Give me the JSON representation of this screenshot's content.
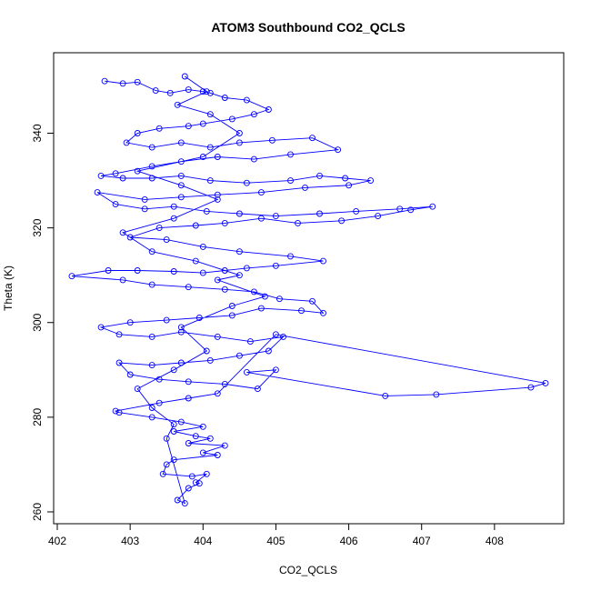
{
  "chart_data": {
    "type": "line",
    "title": "ATOM3 Southbound CO2_QCLS",
    "xlabel": "CO2_QCLS",
    "ylabel": "Theta (K)",
    "xlim": [
      401.95,
      408.95
    ],
    "ylim": [
      257.5,
      357.0
    ],
    "xticks": [
      402,
      403,
      404,
      405,
      406,
      407,
      408
    ],
    "yticks": [
      260,
      280,
      300,
      320,
      340
    ],
    "grid": false,
    "legend": "none",
    "marker": "open-circle",
    "color": "#0000ff",
    "series": [
      {
        "points": [
          [
            402.65,
            351
          ],
          [
            402.9,
            350.5
          ],
          [
            403.1,
            350.8
          ],
          [
            403.35,
            349
          ],
          [
            403.55,
            348.5
          ],
          [
            403.8,
            349.2
          ],
          [
            404.0,
            348.8
          ],
          [
            404.1,
            348.5
          ],
          [
            404.3,
            347.5
          ],
          [
            404.6,
            347
          ],
          [
            404.9,
            345
          ],
          [
            404.7,
            344
          ],
          [
            404.4,
            343
          ],
          [
            404.0,
            342
          ],
          [
            403.8,
            341.5
          ],
          [
            403.4,
            341
          ],
          [
            403.1,
            340
          ],
          [
            402.95,
            338
          ],
          [
            403.3,
            337
          ],
          [
            403.7,
            338
          ],
          [
            404.1,
            337
          ],
          [
            404.5,
            338
          ],
          [
            404.95,
            338.5
          ],
          [
            405.5,
            339
          ],
          [
            405.85,
            336.5
          ],
          [
            405.2,
            335.5
          ],
          [
            404.7,
            334.5
          ],
          [
            404.2,
            335
          ],
          [
            403.7,
            334
          ],
          [
            403.3,
            333
          ],
          [
            402.8,
            331.5
          ],
          [
            402.6,
            331
          ],
          [
            402.9,
            330.5
          ],
          [
            403.3,
            330.5
          ],
          [
            403.7,
            331
          ],
          [
            404.1,
            330
          ],
          [
            404.6,
            329.5
          ],
          [
            405.2,
            330
          ],
          [
            405.6,
            331
          ],
          [
            405.95,
            330.5
          ],
          [
            406.3,
            330
          ],
          [
            406.0,
            329
          ],
          [
            405.4,
            328.5
          ],
          [
            404.8,
            327.5
          ],
          [
            404.2,
            327
          ],
          [
            403.7,
            326.5
          ],
          [
            403.2,
            326
          ],
          [
            402.55,
            327.5
          ],
          [
            402.8,
            325
          ],
          [
            403.2,
            324
          ],
          [
            403.6,
            324.5
          ],
          [
            404.05,
            323.5
          ],
          [
            404.5,
            323
          ],
          [
            405.0,
            322.5
          ],
          [
            405.6,
            323
          ],
          [
            406.1,
            323.5
          ],
          [
            406.7,
            324
          ],
          [
            407.15,
            324.5
          ],
          [
            406.85,
            323.8
          ],
          [
            406.4,
            322.5
          ],
          [
            405.9,
            321.5
          ],
          [
            405.3,
            321
          ],
          [
            404.8,
            322
          ],
          [
            404.3,
            321
          ],
          [
            403.9,
            320.5
          ],
          [
            403.4,
            320
          ],
          [
            403.0,
            318
          ],
          [
            403.5,
            317.5
          ],
          [
            404.0,
            316
          ],
          [
            404.5,
            315
          ],
          [
            405.2,
            314
          ],
          [
            405.65,
            313
          ],
          [
            405.0,
            312
          ],
          [
            404.6,
            311.5
          ],
          [
            404.3,
            311
          ],
          [
            404.0,
            310.5
          ],
          [
            403.6,
            310.8
          ],
          [
            403.1,
            311
          ],
          [
            402.7,
            311
          ],
          [
            402.2,
            309.8
          ],
          [
            402.9,
            309
          ],
          [
            403.3,
            308
          ],
          [
            403.8,
            307.5
          ],
          [
            404.3,
            307
          ],
          [
            404.7,
            306.5
          ],
          [
            405.05,
            305
          ],
          [
            405.5,
            304.5
          ],
          [
            405.65,
            302
          ],
          [
            405.35,
            302.5
          ],
          [
            404.8,
            303
          ],
          [
            404.4,
            301.5
          ],
          [
            403.95,
            301
          ],
          [
            403.5,
            300.5
          ],
          [
            403.0,
            300
          ],
          [
            402.6,
            299
          ],
          [
            402.85,
            297.5
          ],
          [
            403.3,
            297
          ],
          [
            403.7,
            298
          ],
          [
            404.2,
            297
          ],
          [
            404.65,
            296
          ],
          [
            405.1,
            297
          ],
          [
            404.9,
            294
          ],
          [
            404.5,
            293
          ],
          [
            404.1,
            292
          ],
          [
            403.7,
            291.5
          ],
          [
            403.3,
            291
          ],
          [
            402.85,
            291.5
          ],
          [
            403.0,
            289
          ],
          [
            403.4,
            288
          ],
          [
            403.8,
            287.5
          ],
          [
            404.3,
            287
          ],
          [
            404.75,
            286
          ],
          [
            405.0,
            290
          ],
          [
            404.6,
            289.5
          ],
          [
            406.5,
            284.5
          ],
          [
            407.2,
            284.8
          ],
          [
            408.5,
            286.3
          ],
          [
            408.7,
            287.2
          ],
          [
            405.0,
            297.5
          ],
          [
            404.2,
            285
          ],
          [
            403.8,
            284
          ],
          [
            403.4,
            283
          ],
          [
            402.8,
            281.3
          ],
          [
            402.85,
            281
          ],
          [
            403.3,
            280
          ],
          [
            403.7,
            279
          ],
          [
            404.0,
            278
          ],
          [
            403.6,
            277
          ],
          [
            403.9,
            276
          ],
          [
            404.1,
            275.5
          ],
          [
            403.8,
            274.5
          ],
          [
            404.3,
            274
          ],
          [
            404.0,
            272.5
          ],
          [
            404.2,
            272
          ],
          [
            403.6,
            271
          ],
          [
            403.5,
            270
          ],
          [
            403.45,
            268
          ],
          [
            403.85,
            267.5
          ],
          [
            404.05,
            268
          ],
          [
            403.9,
            266.2
          ],
          [
            403.95,
            266
          ],
          [
            403.8,
            265
          ],
          [
            403.65,
            262.5
          ],
          [
            403.75,
            261.8
          ],
          [
            403.5,
            275.5
          ],
          [
            403.6,
            278.5
          ],
          [
            403.3,
            282
          ],
          [
            403.1,
            286
          ],
          [
            403.6,
            290
          ],
          [
            404.05,
            294
          ],
          [
            403.7,
            299
          ],
          [
            404.4,
            303.5
          ],
          [
            404.85,
            305.5
          ],
          [
            404.2,
            309
          ],
          [
            404.5,
            310
          ],
          [
            403.9,
            313
          ],
          [
            403.3,
            315
          ],
          [
            402.9,
            319
          ],
          [
            403.6,
            322
          ],
          [
            404.2,
            326
          ],
          [
            403.7,
            329
          ],
          [
            403.1,
            332
          ],
          [
            404.0,
            335
          ],
          [
            404.5,
            340
          ],
          [
            404.1,
            344
          ],
          [
            403.65,
            346
          ],
          [
            404.05,
            348.8
          ],
          [
            403.75,
            352
          ]
        ]
      }
    ]
  }
}
